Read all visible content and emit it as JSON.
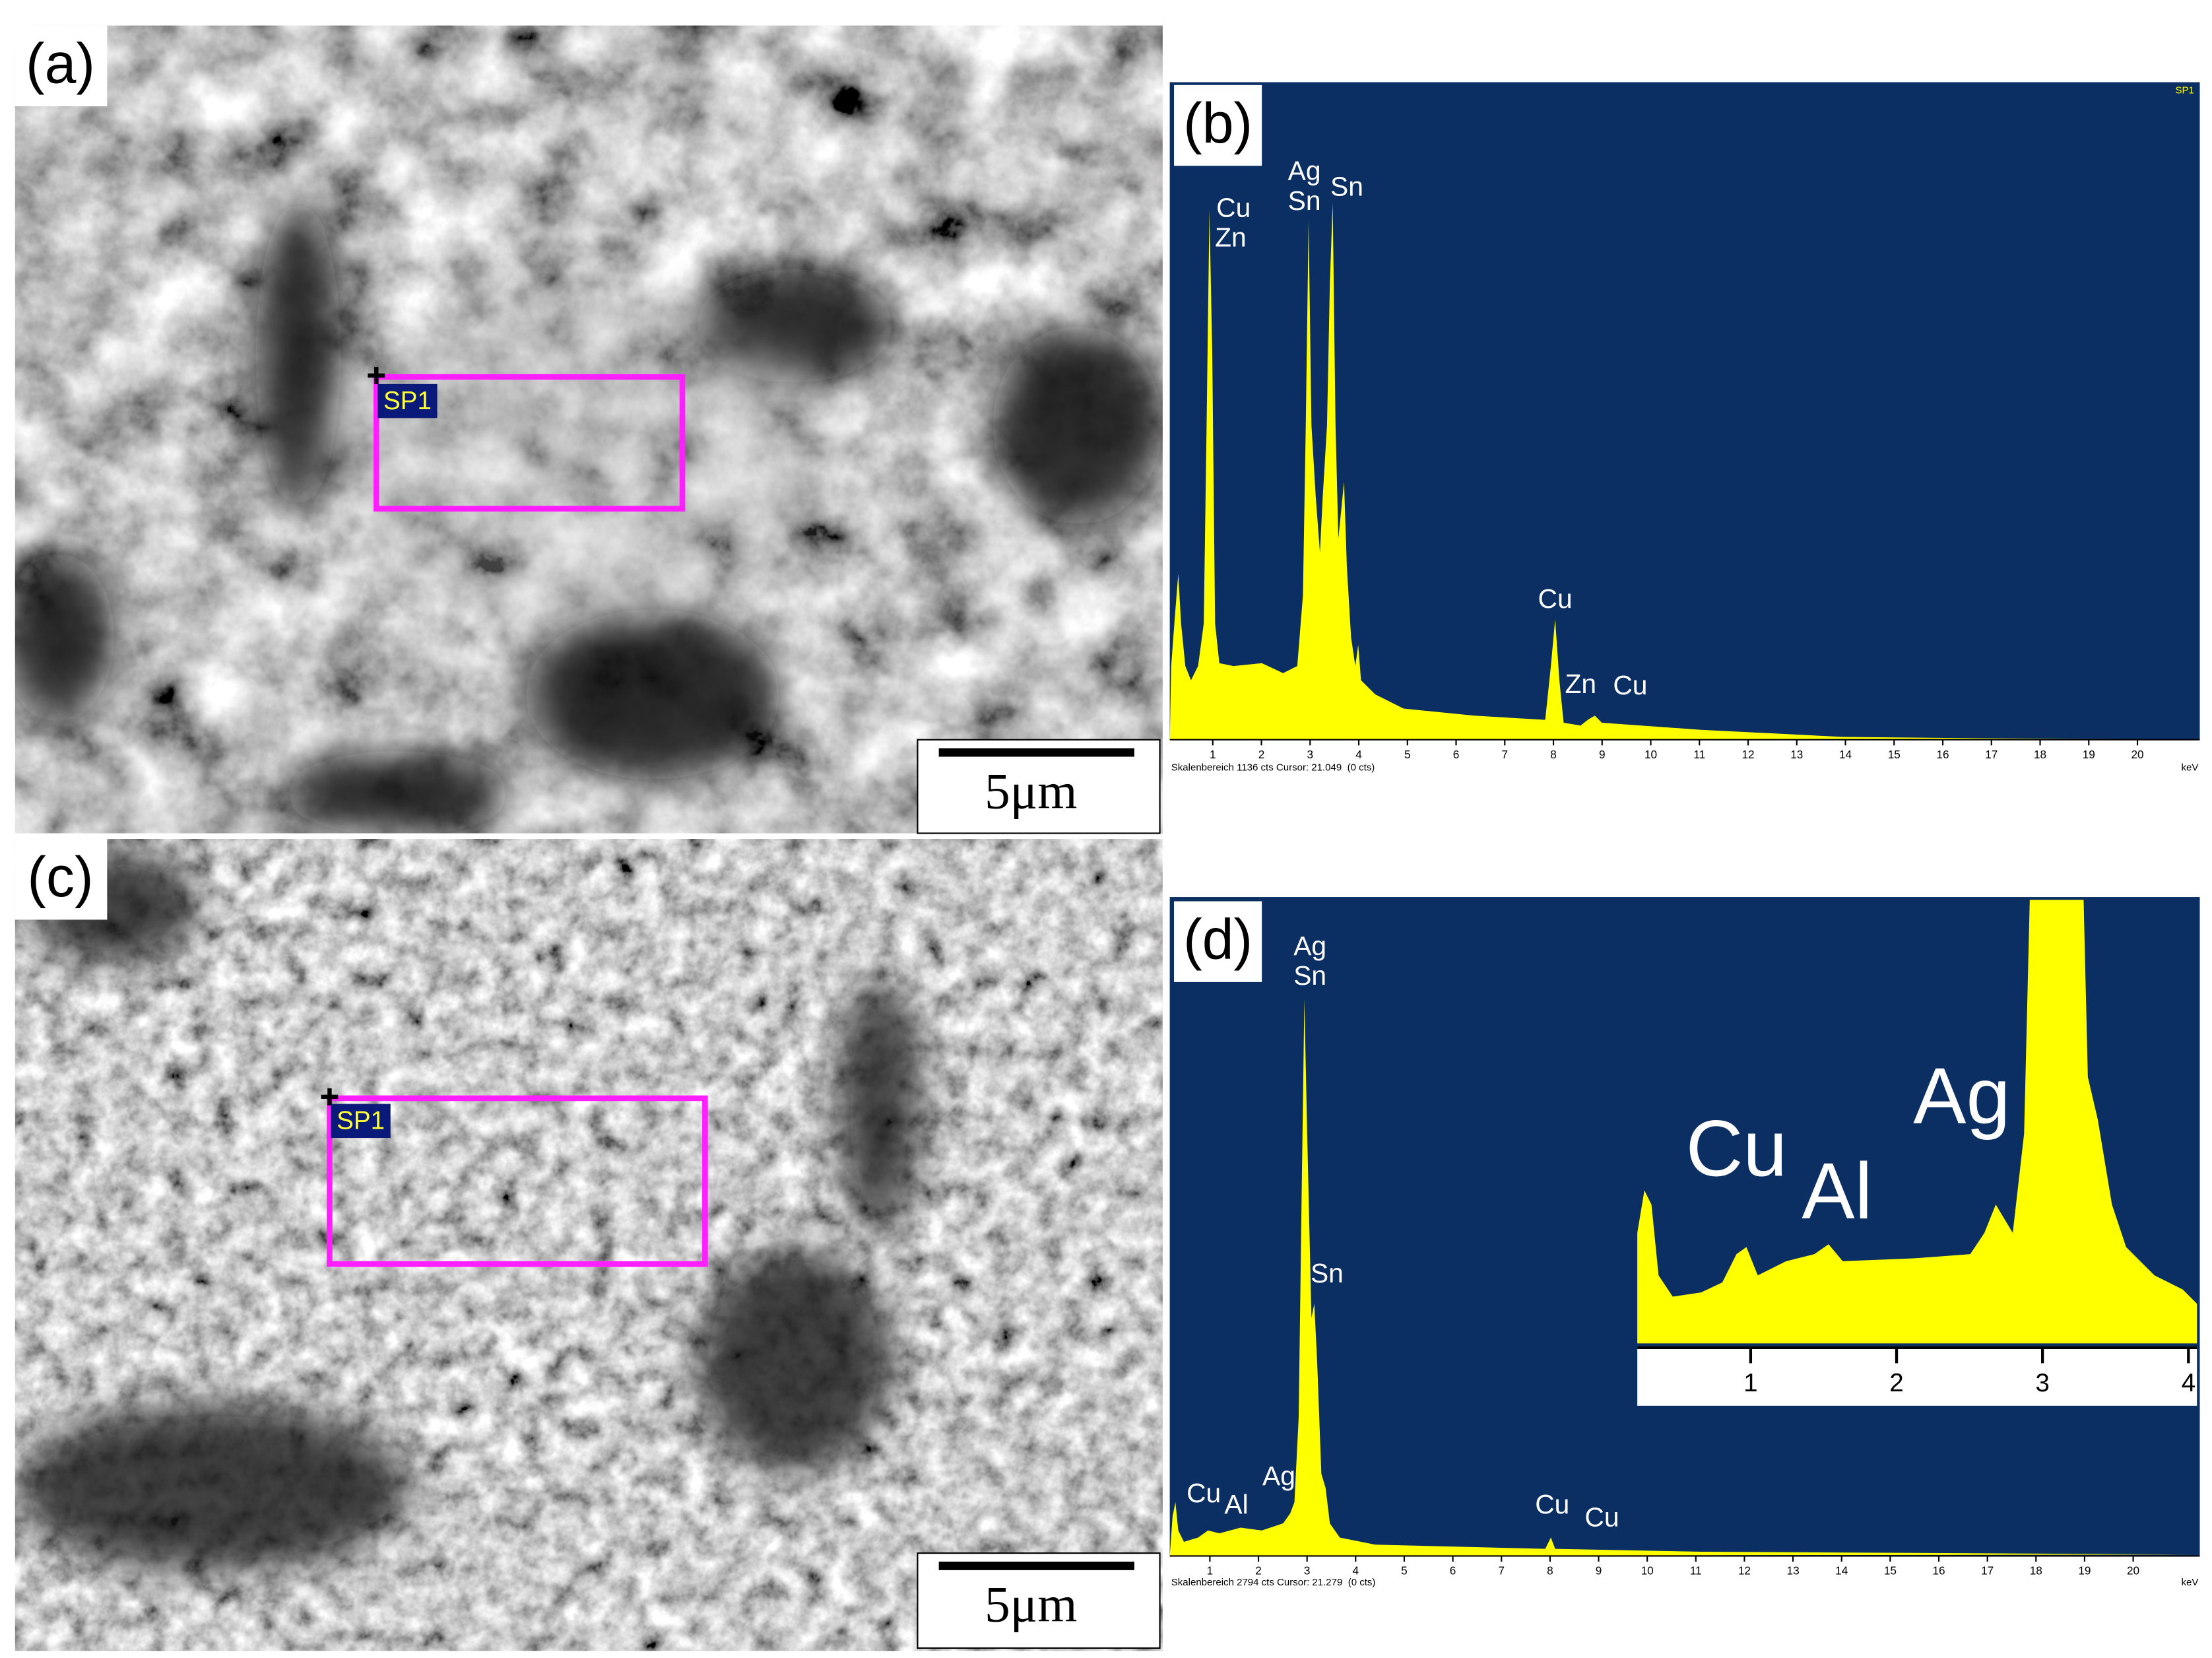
{
  "panels": {
    "a": {
      "label": "(a)",
      "marker": "SP1",
      "scale_bar": "5μm"
    },
    "b": {
      "label": "(b)",
      "corner_tag": "SP1",
      "peak_labels": [
        "Cu",
        "Zn",
        "Ag",
        "Sn",
        "Sn",
        "Cu",
        "Zn",
        "Cu"
      ],
      "ticks": [
        1,
        2,
        3,
        4,
        5,
        6,
        7,
        8,
        9,
        10,
        11,
        12,
        13,
        14,
        15,
        16,
        17,
        18,
        19,
        20
      ],
      "unit": "keV",
      "footer": "Skalenbereich 1136 cts Cursor: 21.049  (0 cts)"
    },
    "c": {
      "label": "(c)",
      "marker": "SP1",
      "scale_bar": "5μm"
    },
    "d": {
      "label": "(d)",
      "peak_labels": [
        "Ag",
        "Sn",
        "Sn",
        "Cu",
        "Al",
        "Ag",
        "Cu",
        "Cu"
      ],
      "ticks": [
        1,
        2,
        3,
        4,
        5,
        6,
        7,
        8,
        9,
        10,
        11,
        12,
        13,
        14,
        15,
        16,
        17,
        18,
        19,
        20
      ],
      "unit": "keV",
      "footer": "Skalenbereich 2794 cts Cursor: 21.279  (0 cts)",
      "inset": {
        "labels": [
          "Cu",
          "Al",
          "Ag"
        ],
        "ticks": [
          1,
          2,
          3,
          4
        ]
      }
    }
  }
}
